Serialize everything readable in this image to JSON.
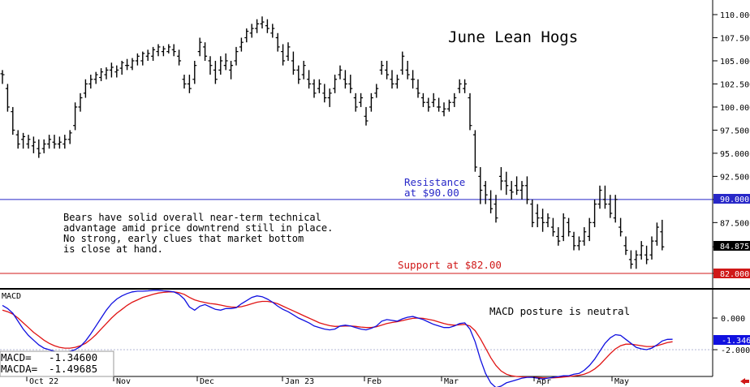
{
  "chart_data": [
    {
      "type": "ohlc",
      "title": "June Lean Hogs",
      "y_ticks": [
        "110.000",
        "107.500",
        "105.000",
        "102.500",
        "100.000",
        "97.500",
        "95.000",
        "92.500",
        "90.000",
        "87.500",
        "84.875",
        "82.000"
      ],
      "ylim": [
        81.0,
        111.5
      ],
      "last_price": 84.875,
      "last_price_label": "84.875",
      "x_labels": [
        "Oct 22",
        "Nov",
        "Dec",
        "Jan 23",
        "Feb",
        "Mar",
        "Apr",
        "May"
      ],
      "levels": [
        {
          "name": "Resistance",
          "value": 90.0,
          "value_label": "90.000",
          "color": "#2828c8",
          "text_lines": [
            "Resistance",
            "at $90.00"
          ]
        },
        {
          "name": "Support",
          "value": 82.0,
          "value_label": "82.000",
          "color": "#d01818",
          "text_lines": [
            "Support at $82.00"
          ]
        }
      ],
      "annotation_lines": [
        "Bears have solid overall near-term technical",
        "advantage amid price downtrend still in place.",
        "No strong, early clues that market bottom",
        "is close at hand."
      ],
      "bars": [
        [
          103.6,
          104.0,
          102.5,
          103.5
        ],
        [
          102.0,
          102.5,
          99.5,
          100.0
        ],
        [
          99.5,
          100.0,
          97.0,
          97.5
        ],
        [
          97.0,
          97.5,
          95.5,
          96.0
        ],
        [
          96.5,
          97.2,
          95.5,
          96.8
        ],
        [
          96.0,
          97.0,
          95.5,
          96.5
        ],
        [
          95.8,
          96.8,
          95.0,
          96.2
        ],
        [
          95.5,
          96.5,
          94.5,
          95.0
        ],
        [
          95.5,
          96.5,
          95.0,
          96.0
        ],
        [
          96.0,
          97.0,
          95.5,
          96.5
        ],
        [
          96.2,
          97.0,
          95.5,
          96.0
        ],
        [
          96.0,
          96.8,
          95.5,
          96.2
        ],
        [
          96.0,
          97.0,
          95.5,
          96.5
        ],
        [
          96.5,
          97.5,
          96.0,
          97.2
        ],
        [
          98.0,
          100.5,
          97.5,
          100.0
        ],
        [
          100.0,
          101.5,
          99.5,
          101.0
        ],
        [
          101.5,
          103.0,
          101.0,
          102.5
        ],
        [
          102.5,
          103.5,
          102.0,
          103.0
        ],
        [
          103.0,
          103.8,
          102.5,
          103.5
        ],
        [
          103.2,
          104.2,
          102.8,
          103.8
        ],
        [
          103.5,
          104.3,
          103.0,
          104.0
        ],
        [
          104.0,
          104.8,
          103.2,
          104.3
        ],
        [
          103.8,
          104.5,
          103.2,
          104.0
        ],
        [
          104.2,
          105.0,
          103.5,
          104.8
        ],
        [
          104.5,
          105.2,
          104.0,
          104.5
        ],
        [
          104.3,
          105.3,
          104.0,
          105.0
        ],
        [
          105.0,
          105.8,
          104.5,
          105.5
        ],
        [
          105.0,
          106.0,
          104.5,
          105.8
        ],
        [
          105.5,
          106.2,
          105.0,
          105.8
        ],
        [
          105.5,
          106.5,
          105.0,
          106.2
        ],
        [
          106.0,
          106.8,
          105.5,
          106.5
        ],
        [
          106.0,
          106.6,
          105.5,
          106.3
        ],
        [
          106.0,
          106.8,
          105.8,
          106.5
        ],
        [
          106.2,
          106.8,
          105.5,
          106.0
        ],
        [
          105.5,
          106.2,
          104.5,
          105.0
        ],
        [
          103.0,
          103.5,
          102.0,
          102.5
        ],
        [
          102.5,
          103.5,
          101.5,
          102.0
        ],
        [
          103.0,
          105.0,
          102.5,
          104.5
        ],
        [
          106.0,
          107.5,
          105.5,
          107.0
        ],
        [
          106.5,
          107.0,
          105.0,
          105.5
        ],
        [
          105.0,
          105.5,
          103.5,
          104.5
        ],
        [
          104.0,
          105.0,
          102.5,
          103.0
        ],
        [
          104.0,
          105.5,
          103.5,
          105.0
        ],
        [
          104.5,
          105.8,
          104.0,
          105.0
        ],
        [
          104.0,
          105.0,
          103.0,
          104.5
        ],
        [
          105.0,
          106.5,
          104.5,
          106.0
        ],
        [
          106.5,
          107.5,
          106.0,
          107.0
        ],
        [
          107.5,
          108.5,
          107.0,
          108.2
        ],
        [
          108.0,
          109.0,
          107.5,
          108.5
        ],
        [
          108.5,
          109.5,
          108.0,
          109.0
        ],
        [
          109.0,
          109.8,
          108.5,
          109.2
        ],
        [
          108.8,
          109.5,
          108.0,
          108.5
        ],
        [
          108.0,
          109.0,
          107.5,
          108.5
        ],
        [
          107.5,
          108.0,
          106.0,
          106.5
        ],
        [
          106.0,
          106.8,
          104.5,
          105.0
        ],
        [
          105.5,
          107.0,
          105.0,
          106.5
        ],
        [
          105.0,
          106.0,
          103.5,
          104.0
        ],
        [
          104.0,
          104.5,
          102.5,
          103.0
        ],
        [
          103.5,
          105.0,
          103.0,
          104.5
        ],
        [
          103.0,
          104.0,
          102.0,
          102.5
        ],
        [
          102.5,
          103.0,
          101.0,
          101.5
        ],
        [
          102.0,
          103.0,
          101.5,
          102.5
        ],
        [
          101.5,
          102.5,
          100.5,
          101.0
        ],
        [
          101.0,
          102.0,
          100.0,
          101.5
        ],
        [
          102.0,
          103.5,
          101.5,
          103.0
        ],
        [
          103.5,
          104.5,
          103.0,
          104.0
        ],
        [
          103.0,
          104.0,
          102.0,
          102.5
        ],
        [
          102.5,
          103.5,
          101.5,
          102.0
        ],
        [
          101.0,
          101.5,
          99.5,
          100.0
        ],
        [
          100.5,
          101.5,
          100.0,
          101.0
        ],
        [
          99.0,
          100.0,
          98.0,
          98.5
        ],
        [
          100.0,
          101.5,
          99.5,
          101.0
        ],
        [
          101.5,
          102.5,
          101.0,
          102.0
        ],
        [
          104.0,
          105.0,
          103.5,
          104.5
        ],
        [
          104.0,
          105.0,
          103.0,
          103.5
        ],
        [
          103.0,
          104.0,
          102.0,
          102.5
        ],
        [
          102.5,
          103.5,
          102.0,
          103.0
        ],
        [
          104.0,
          106.0,
          103.5,
          105.5
        ],
        [
          104.0,
          105.0,
          103.0,
          103.5
        ],
        [
          103.0,
          104.0,
          102.0,
          103.0
        ],
        [
          102.0,
          103.0,
          101.0,
          101.5
        ],
        [
          101.0,
          101.5,
          100.0,
          100.5
        ],
        [
          100.5,
          101.0,
          99.5,
          100.0
        ],
        [
          100.5,
          101.5,
          100.0,
          100.8
        ],
        [
          100.0,
          101.0,
          99.5,
          100.0
        ],
        [
          99.5,
          100.5,
          99.0,
          99.8
        ],
        [
          99.8,
          100.8,
          99.5,
          100.5
        ],
        [
          100.5,
          101.5,
          100.0,
          101.0
        ],
        [
          102.0,
          103.0,
          101.5,
          102.5
        ],
        [
          102.0,
          103.0,
          101.5,
          102.5
        ],
        [
          101.0,
          101.5,
          97.5,
          98.0
        ],
        [
          97.0,
          97.5,
          93.0,
          93.5
        ],
        [
          92.5,
          93.5,
          89.5,
          91.0
        ],
        [
          91.5,
          92.0,
          89.5,
          90.5
        ],
        [
          90.0,
          91.0,
          88.5,
          89.0
        ],
        [
          89.5,
          90.5,
          87.5,
          88.0
        ],
        [
          92.5,
          93.5,
          91.0,
          92.0
        ],
        [
          92.0,
          93.0,
          90.5,
          91.5
        ],
        [
          91.0,
          92.0,
          90.0,
          90.8
        ],
        [
          91.5,
          92.5,
          90.5,
          91.0
        ],
        [
          91.0,
          92.0,
          90.0,
          91.5
        ],
        [
          91.5,
          92.5,
          89.5,
          90.0
        ],
        [
          89.5,
          90.0,
          87.0,
          87.5
        ],
        [
          88.5,
          89.5,
          87.0,
          88.0
        ],
        [
          88.0,
          89.0,
          86.5,
          87.5
        ],
        [
          87.5,
          88.5,
          87.0,
          88.0
        ],
        [
          87.0,
          88.0,
          86.0,
          86.5
        ],
        [
          86.0,
          87.0,
          85.0,
          85.5
        ],
        [
          86.0,
          88.5,
          85.5,
          88.0
        ],
        [
          87.5,
          88.0,
          86.0,
          86.5
        ],
        [
          86.0,
          86.5,
          84.5,
          85.0
        ],
        [
          85.0,
          86.0,
          84.5,
          85.5
        ],
        [
          85.5,
          87.0,
          85.0,
          86.5
        ],
        [
          86.0,
          88.0,
          85.5,
          87.5
        ],
        [
          87.5,
          90.0,
          87.0,
          89.5
        ],
        [
          89.5,
          91.5,
          89.0,
          91.0
        ],
        [
          90.0,
          91.5,
          89.0,
          89.5
        ],
        [
          89.5,
          90.5,
          88.0,
          88.5
        ],
        [
          88.0,
          90.5,
          87.5,
          90.0
        ],
        [
          87.0,
          88.0,
          86.0,
          86.5
        ],
        [
          85.0,
          86.0,
          84.0,
          84.5
        ],
        [
          83.5,
          84.5,
          82.5,
          83.0
        ],
        [
          83.5,
          84.5,
          82.5,
          84.0
        ],
        [
          84.0,
          85.5,
          83.5,
          85.0
        ],
        [
          84.0,
          85.0,
          83.0,
          83.5
        ],
        [
          84.0,
          86.0,
          83.5,
          85.5
        ],
        [
          85.5,
          87.5,
          85.0,
          87.0
        ],
        [
          86.5,
          87.8,
          84.5,
          84.875
        ]
      ]
    },
    {
      "type": "line",
      "title": "MACD",
      "status_text": "MACD posture is neutral",
      "y_ticks": [
        "0.000",
        "-2.000"
      ],
      "ylim": [
        -5.8,
        3.6
      ],
      "zero_line": 0,
      "current_label": "-1.346",
      "readout": [
        {
          "label": "MACD=",
          "value": "-1.34600"
        },
        {
          "label": "MACDA=",
          "value": "-1.49685"
        }
      ],
      "series": [
        {
          "name": "MACD",
          "color": "#1010e0",
          "values": [
            0.8,
            0.6,
            0.3,
            -0.2,
            -0.7,
            -1.1,
            -1.4,
            -1.7,
            -1.9,
            -2.0,
            -2.1,
            -2.15,
            -2.15,
            -2.1,
            -2.0,
            -1.8,
            -1.45,
            -1.0,
            -0.5,
            0.0,
            0.5,
            0.9,
            1.2,
            1.4,
            1.55,
            1.65,
            1.7,
            1.7,
            1.72,
            1.75,
            1.75,
            1.72,
            1.7,
            1.65,
            1.5,
            1.2,
            0.7,
            0.5,
            0.75,
            0.85,
            0.7,
            0.55,
            0.5,
            0.6,
            0.6,
            0.65,
            0.9,
            1.1,
            1.3,
            1.4,
            1.35,
            1.2,
            1.0,
            0.75,
            0.55,
            0.4,
            0.2,
            0.0,
            -0.15,
            -0.3,
            -0.5,
            -0.6,
            -0.7,
            -0.75,
            -0.7,
            -0.5,
            -0.45,
            -0.5,
            -0.6,
            -0.7,
            -0.75,
            -0.65,
            -0.5,
            -0.2,
            -0.1,
            -0.15,
            -0.2,
            -0.05,
            0.05,
            0.1,
            0.0,
            -0.1,
            -0.25,
            -0.4,
            -0.5,
            -0.6,
            -0.6,
            -0.5,
            -0.35,
            -0.3,
            -0.7,
            -1.5,
            -2.6,
            -3.5,
            -4.1,
            -4.4,
            -4.3,
            -4.1,
            -4.0,
            -3.9,
            -3.8,
            -3.75,
            -3.75,
            -3.8,
            -3.85,
            -3.8,
            -3.75,
            -3.7,
            -3.65,
            -3.65,
            -3.55,
            -3.5,
            -3.3,
            -3.0,
            -2.6,
            -2.1,
            -1.6,
            -1.25,
            -1.05,
            -1.1,
            -1.35,
            -1.6,
            -1.85,
            -1.95,
            -2.0,
            -1.9,
            -1.7,
            -1.45,
            -1.35,
            -1.346
          ]
        },
        {
          "name": "MACDA",
          "color": "#e01414",
          "values": [
            0.5,
            0.4,
            0.25,
            0.0,
            -0.3,
            -0.6,
            -0.9,
            -1.15,
            -1.4,
            -1.6,
            -1.75,
            -1.85,
            -1.9,
            -1.9,
            -1.85,
            -1.75,
            -1.6,
            -1.35,
            -1.05,
            -0.7,
            -0.35,
            0.0,
            0.3,
            0.55,
            0.8,
            1.0,
            1.15,
            1.3,
            1.4,
            1.5,
            1.58,
            1.62,
            1.65,
            1.65,
            1.6,
            1.5,
            1.3,
            1.15,
            1.05,
            0.98,
            0.92,
            0.88,
            0.82,
            0.75,
            0.7,
            0.68,
            0.72,
            0.8,
            0.9,
            1.0,
            1.05,
            1.05,
            1.0,
            0.9,
            0.75,
            0.6,
            0.45,
            0.3,
            0.15,
            0.0,
            -0.15,
            -0.3,
            -0.4,
            -0.48,
            -0.53,
            -0.52,
            -0.5,
            -0.5,
            -0.53,
            -0.57,
            -0.6,
            -0.6,
            -0.55,
            -0.45,
            -0.35,
            -0.28,
            -0.23,
            -0.16,
            -0.08,
            -0.02,
            0.0,
            -0.02,
            -0.08,
            -0.15,
            -0.25,
            -0.35,
            -0.42,
            -0.45,
            -0.43,
            -0.4,
            -0.5,
            -0.8,
            -1.3,
            -1.9,
            -2.5,
            -3.0,
            -3.35,
            -3.55,
            -3.65,
            -3.7,
            -3.72,
            -3.73,
            -3.74,
            -3.76,
            -3.78,
            -3.79,
            -3.78,
            -3.76,
            -3.73,
            -3.7,
            -3.66,
            -3.62,
            -3.55,
            -3.42,
            -3.22,
            -2.95,
            -2.6,
            -2.25,
            -1.95,
            -1.75,
            -1.65,
            -1.65,
            -1.7,
            -1.75,
            -1.8,
            -1.8,
            -1.75,
            -1.65,
            -1.55,
            -1.49685
          ]
        }
      ]
    }
  ]
}
